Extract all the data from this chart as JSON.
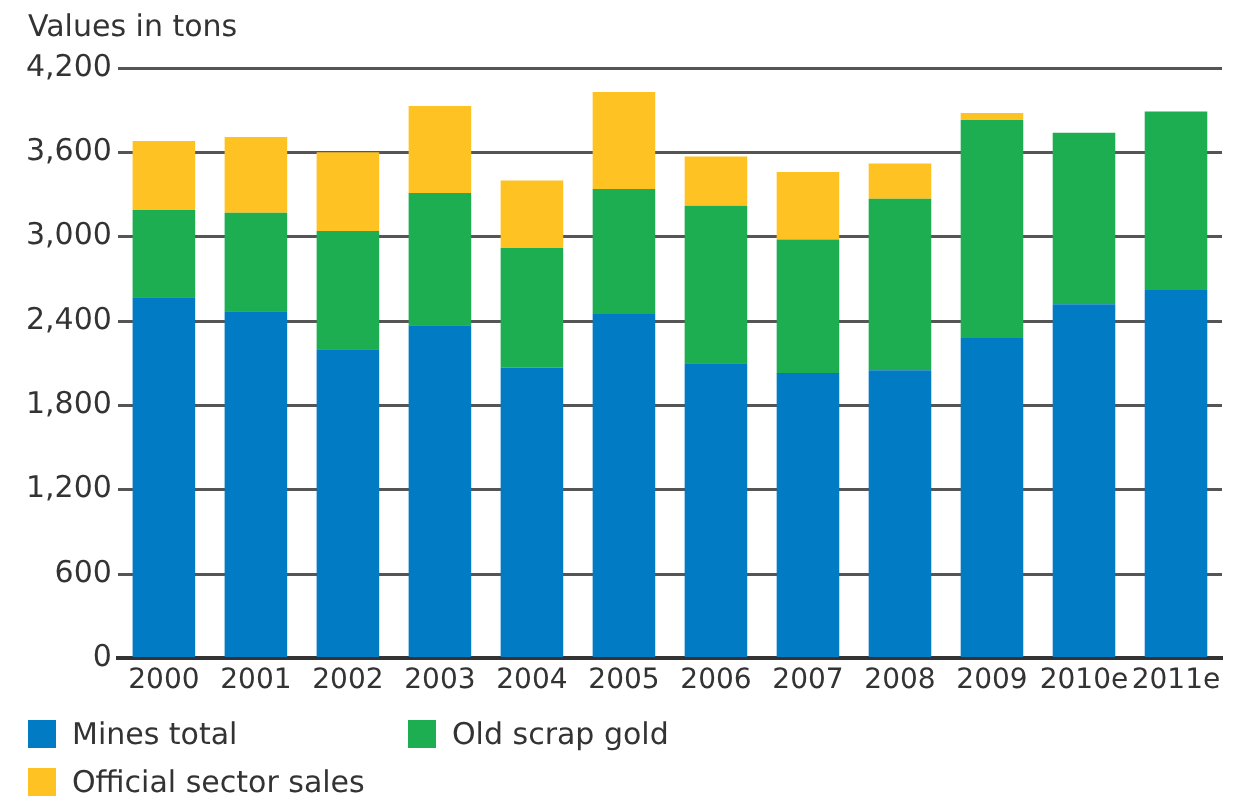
{
  "chart_data": {
    "type": "bar",
    "ylabel": "Values in tons",
    "stacked": true,
    "grid": "y",
    "legend": "bottom left",
    "categories": [
      "2000",
      "2001",
      "2002",
      "2003",
      "2004",
      "2005",
      "2006",
      "2007",
      "2008",
      "2009",
      "2010e",
      "2011e"
    ],
    "series": [
      {
        "name": "Mines total",
        "color": "#007bc4",
        "values": [
          2570,
          2470,
          2200,
          2370,
          2070,
          2450,
          2100,
          2030,
          2050,
          2280,
          2520,
          2620
        ]
      },
      {
        "name": "Old scrap gold",
        "color": "#1cae50",
        "values": [
          620,
          700,
          840,
          940,
          850,
          890,
          1120,
          950,
          1220,
          1550,
          1220,
          1270
        ]
      },
      {
        "name": "Official sector sales",
        "color": "#fec322",
        "values": [
          490,
          540,
          560,
          620,
          480,
          690,
          350,
          480,
          250,
          50,
          null,
          null
        ]
      }
    ],
    "ylim": [
      0,
      4200
    ],
    "yticks": [
      0,
      600,
      {
        "value": 1200,
        "label": "1,200"
      },
      {
        "value": 1800,
        "label": "1,800"
      },
      {
        "value": 2400,
        "label": "2,400"
      },
      {
        "value": 3000,
        "label": "3,000"
      },
      {
        "value": 3600,
        "label": "3,600"
      },
      {
        "value": 4200,
        "label": "4,200"
      }
    ]
  }
}
